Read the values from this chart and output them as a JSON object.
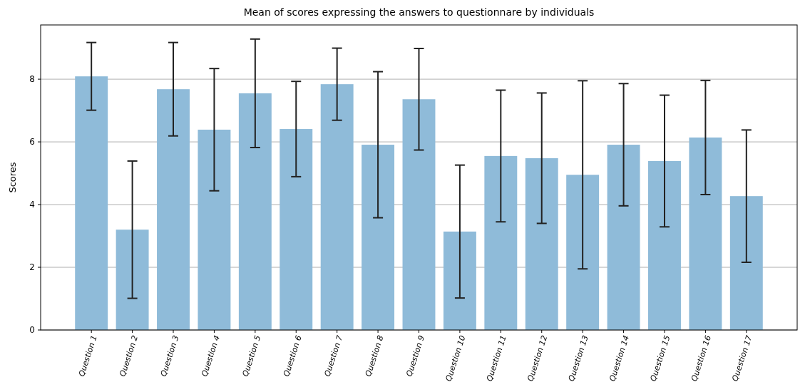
{
  "chart_data": {
    "type": "bar",
    "title": "Mean of scores expressing the answers to questionnare by individuals",
    "ylabel": "Scores",
    "categories": [
      "Question 1",
      "Question 2",
      "Question 3",
      "Question 4",
      "Question 5",
      "Question 6",
      "Question 7",
      "Question 8",
      "Question 9",
      "Question 10",
      "Question 11",
      "Question 12",
      "Question 13",
      "Question 14",
      "Question 15",
      "Question 16",
      "Question 17"
    ],
    "values": [
      8.09,
      3.2,
      7.68,
      6.39,
      7.55,
      6.41,
      7.84,
      5.91,
      7.36,
      3.14,
      5.55,
      5.48,
      4.95,
      5.91,
      5.39,
      6.14,
      4.27
    ],
    "errors": [
      1.08,
      2.19,
      1.49,
      1.95,
      1.73,
      1.52,
      1.15,
      2.33,
      1.62,
      2.12,
      2.1,
      2.08,
      3.0,
      1.95,
      2.1,
      1.82,
      2.11
    ],
    "color": "#8fbbd9",
    "ylim": [
      0,
      9.73
    ],
    "yticks": [
      0,
      2,
      4,
      6,
      8
    ],
    "grid": "y"
  }
}
